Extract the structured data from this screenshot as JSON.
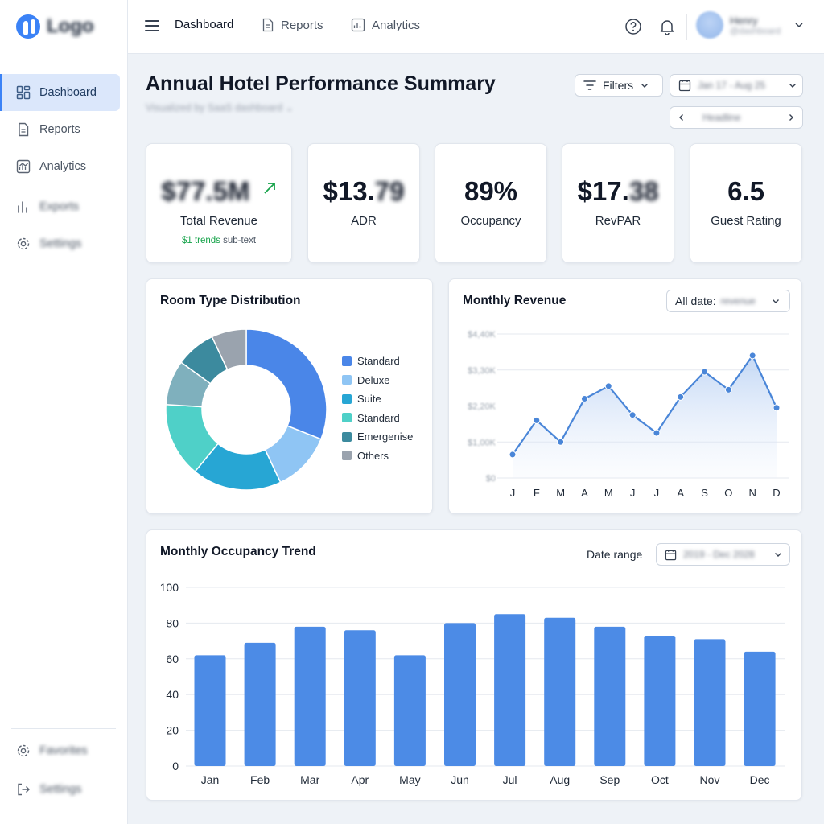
{
  "sidebar": {
    "logo": "Logo",
    "items": [
      {
        "label": "Dashboard"
      },
      {
        "label": "Reports"
      },
      {
        "label": "Analytics"
      },
      {
        "label": "Exports"
      },
      {
        "label": "Settings"
      }
    ],
    "bottom_items": [
      {
        "label": "Favorites"
      },
      {
        "label": "Settings"
      }
    ]
  },
  "topbar": {
    "tabs": [
      {
        "label": "Dashboard"
      },
      {
        "label": "Reports"
      },
      {
        "label": "Analytics"
      }
    ],
    "user": {
      "name": "Henry",
      "role": "@dashboard"
    }
  },
  "header": {
    "title": "Annual Hotel Performance Summary",
    "subtitle": "Visualized by SaaS dashboard",
    "filters_label": "Filters",
    "date_range": "Jan 17 - Aug 25",
    "pager_label": "Headline"
  },
  "kpis": [
    {
      "value": "$77.5M",
      "label": "Total Revenue",
      "sub_green": "$1 trends",
      "sub_rest": " sub-text"
    },
    {
      "value_clear": "$13.",
      "value_blur": "79",
      "label": "ADR"
    },
    {
      "value": "89%",
      "label": "Occupancy"
    },
    {
      "value_clear": "$17.",
      "value_blur": "38",
      "label": "RevPAR"
    },
    {
      "value": "6.5",
      "label": "Guest Rating"
    }
  ],
  "colors": {
    "accent": "#3b82f6",
    "bar": "#4c8be6",
    "line": "#4a86d8",
    "trend_green": "#16a34a"
  },
  "room_type": {
    "title": "Room Type Distribution"
  },
  "monthly_revenue": {
    "title": "Monthly Revenue",
    "filter_label": "All date:",
    "filter_value": "revenue"
  },
  "occupancy": {
    "title": "Monthly Occupancy Trend",
    "range_label": "Date range",
    "range_value": "2019 - Dec 2028"
  },
  "chart_data": [
    {
      "type": "pie",
      "title": "Room Type Distribution",
      "labels": [
        "Standard",
        "Deluxe",
        "Suite",
        "Standard",
        "Emergenise",
        "Others"
      ],
      "values": [
        31,
        12,
        18,
        15,
        8,
        7
      ],
      "extra_slice_value": 9,
      "colors": [
        "#4a86e8",
        "#8fc5f4",
        "#27a6d4",
        "#4fd0c8",
        "#3c8a9e",
        "#9aa3ae"
      ],
      "extra_slice_color": "#7fb0bd",
      "legend_position": "right"
    },
    {
      "type": "area",
      "title": "Monthly Revenue",
      "categories": [
        "J",
        "F",
        "M",
        "A",
        "M",
        "J",
        "J",
        "A",
        "S",
        "O",
        "N",
        "D"
      ],
      "values": [
        0.65,
        1.6,
        1.0,
        2.2,
        2.55,
        1.75,
        1.25,
        2.25,
        2.95,
        2.45,
        3.4,
        1.95
      ],
      "y_ticks": [
        "$0",
        "$1,00K",
        "$2,20K",
        "$3,30K",
        "$4,40K"
      ],
      "ylim": [
        0,
        4
      ],
      "grid": true
    },
    {
      "type": "bar",
      "title": "Monthly Occupancy Trend",
      "categories": [
        "Jan",
        "Feb",
        "Mar",
        "Apr",
        "May",
        "Jun",
        "Jul",
        "Aug",
        "Sep",
        "Oct",
        "Nov",
        "Dec"
      ],
      "values": [
        62,
        69,
        78,
        76,
        62,
        80,
        85,
        83,
        78,
        73,
        71,
        64
      ],
      "y_ticks": [
        "0",
        "20",
        "40",
        "60",
        "80",
        "100"
      ],
      "ylim": [
        0,
        100
      ],
      "grid": true
    }
  ]
}
